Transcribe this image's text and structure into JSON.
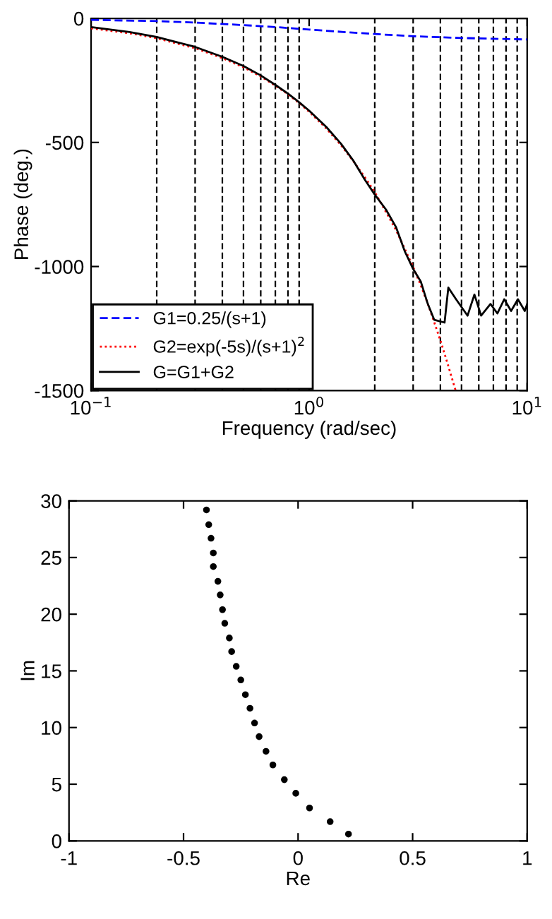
{
  "chart_data": [
    {
      "type": "line",
      "xlabel": "Frequency (rad/sec)",
      "ylabel": "Phase (deg.)",
      "log": "x",
      "xlim": [
        0.1,
        10
      ],
      "xticks": [
        {
          "value": 0.1,
          "label": "10$^{−1}$"
        },
        {
          "value": 1,
          "label": "10$^{0}$"
        },
        {
          "value": 10,
          "label": "10$^{1}$"
        }
      ],
      "ylim": [
        -1500,
        0
      ],
      "yticks": [
        -1500,
        -1000,
        -500,
        0
      ],
      "legend": "bottom left",
      "grid": false,
      "series": [
        {
          "name": "G1=0.25/(s+1)",
          "color": "#0000ff",
          "line_style": "dashed",
          "x": [
            0.1,
            0.2,
            0.3,
            0.5,
            0.7,
            1,
            1.5,
            2,
            3,
            5,
            7,
            10
          ],
          "values": [
            -6,
            -11,
            -17,
            -27,
            -35,
            -45,
            -56,
            -63,
            -72,
            -79,
            -82,
            -85
          ]
        },
        {
          "name": "G2=exp(-5s)/(s+1)$^{2}$",
          "color": "#ff0000",
          "line_style": "dotted",
          "x": [
            0.1,
            0.15,
            0.2,
            0.3,
            0.4,
            0.5,
            0.6,
            0.7,
            0.8,
            0.9,
            1,
            1.2,
            1.4,
            1.6,
            1.8,
            2,
            2.25,
            2.5,
            2.75,
            3,
            3.25,
            3.5,
            3.75,
            4,
            4.25,
            4.5,
            4.7
          ],
          "values": [
            -40,
            -60,
            -80,
            -120,
            -160,
            -197,
            -234,
            -271,
            -306,
            -341,
            -376,
            -444,
            -511,
            -577,
            -640,
            -700,
            -780,
            -852,
            -930,
            -1002,
            -1075,
            -1150,
            -1225,
            -1298,
            -1372,
            -1445,
            -1500
          ]
        },
        {
          "name": "G=G1+G2",
          "color": "#000000",
          "line_style": "solid",
          "x": [
            0.1,
            0.15,
            0.2,
            0.3,
            0.4,
            0.5,
            0.6,
            0.7,
            0.8,
            0.9,
            1,
            1.2,
            1.4,
            1.6,
            1.8,
            2,
            2.25,
            2.5,
            2.75,
            3,
            3.25,
            3.5,
            3.75,
            4.18,
            4.35,
            4.72,
            5.33,
            5.73,
            6.15,
            6.79,
            7.3,
            7.85,
            8.44,
            9.07,
            9.75,
            10
          ],
          "values": [
            -35,
            -55,
            -75,
            -115,
            -155,
            -192,
            -230,
            -268,
            -303,
            -338,
            -372,
            -438,
            -505,
            -575,
            -650,
            -710,
            -770,
            -840,
            -940,
            -1010,
            -1060,
            -1150,
            -1215,
            -1226,
            -1085,
            -1132,
            -1198,
            -1113,
            -1198,
            -1151,
            -1189,
            -1132,
            -1179,
            -1132,
            -1179,
            -1151
          ]
        }
      ],
      "ref_lines": [
        {
          "axis": "x",
          "value": 0.2,
          "color": "#000000",
          "line_style": "dashed"
        },
        {
          "axis": "x",
          "value": 0.3,
          "color": "#000000",
          "line_style": "dashed"
        },
        {
          "axis": "x",
          "value": 0.4,
          "color": "#000000",
          "line_style": "dashed"
        },
        {
          "axis": "x",
          "value": 0.5,
          "color": "#000000",
          "line_style": "dashed"
        },
        {
          "axis": "x",
          "value": 0.6,
          "color": "#000000",
          "line_style": "dashed"
        },
        {
          "axis": "x",
          "value": 0.7,
          "color": "#000000",
          "line_style": "dashed"
        },
        {
          "axis": "x",
          "value": 0.8,
          "color": "#000000",
          "line_style": "dashed"
        },
        {
          "axis": "x",
          "value": 0.9,
          "color": "#000000",
          "line_style": "dashed"
        },
        {
          "axis": "x",
          "value": 2,
          "color": "#000000",
          "line_style": "dashed"
        },
        {
          "axis": "x",
          "value": 3,
          "color": "#000000",
          "line_style": "dashed"
        },
        {
          "axis": "x",
          "value": 4,
          "color": "#000000",
          "line_style": "dashed"
        },
        {
          "axis": "x",
          "value": 5,
          "color": "#000000",
          "line_style": "dashed"
        },
        {
          "axis": "x",
          "value": 6,
          "color": "#000000",
          "line_style": "dashed"
        },
        {
          "axis": "x",
          "value": 7,
          "color": "#000000",
          "line_style": "dashed"
        },
        {
          "axis": "x",
          "value": 8,
          "color": "#000000",
          "line_style": "dashed"
        },
        {
          "axis": "x",
          "value": 9,
          "color": "#000000",
          "line_style": "dashed"
        }
      ]
    },
    {
      "type": "scatter",
      "xlabel": "Re",
      "ylabel": "Im",
      "xlim": [
        -1,
        1
      ],
      "xticks": [
        -1,
        -0.5,
        0,
        0.5,
        1
      ],
      "ylim": [
        0,
        30
      ],
      "yticks": [
        0,
        5,
        10,
        15,
        20,
        25,
        30
      ],
      "grid": false,
      "marker": "circle",
      "series": [
        {
          "color": "#000000",
          "x": [
            -0.4,
            -0.39,
            -0.38,
            -0.37,
            -0.37,
            -0.35,
            -0.34,
            -0.33,
            -0.32,
            -0.3,
            -0.29,
            -0.27,
            -0.25,
            -0.23,
            -0.21,
            -0.19,
            -0.17,
            -0.14,
            -0.11,
            -0.06,
            -0.01,
            0.05,
            0.14,
            0.22
          ],
          "values": [
            29.2,
            27.9,
            26.7,
            25.4,
            24.2,
            22.9,
            21.7,
            20.4,
            19.2,
            17.9,
            16.7,
            15.4,
            14.2,
            12.9,
            11.7,
            10.4,
            9.2,
            7.9,
            6.7,
            5.4,
            4.2,
            2.9,
            1.7,
            0.6
          ]
        }
      ]
    }
  ]
}
